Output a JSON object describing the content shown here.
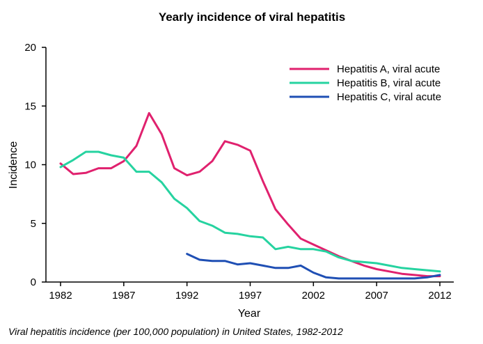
{
  "chart_data": {
    "type": "line",
    "title": "Yearly incidence of viral hepatitis",
    "xlabel": "Year",
    "ylabel": "Incidence",
    "xlim": [
      1982,
      2012
    ],
    "ylim": [
      0,
      20
    ],
    "x_ticks": [
      1982,
      1987,
      1992,
      1997,
      2002,
      2007,
      2012
    ],
    "y_ticks": [
      0,
      5,
      10,
      15,
      20
    ],
    "grid": false,
    "legend_position": "top-right",
    "series": [
      {
        "name": "Hepatitis A, viral acute",
        "color": "#e0216e",
        "x": [
          1982,
          1983,
          1984,
          1985,
          1986,
          1987,
          1988,
          1989,
          1990,
          1991,
          1992,
          1993,
          1994,
          1995,
          1996,
          1997,
          1998,
          1999,
          2000,
          2001,
          2002,
          2003,
          2004,
          2005,
          2006,
          2007,
          2008,
          2009,
          2010,
          2011,
          2012
        ],
        "values": [
          10.1,
          9.2,
          9.3,
          9.7,
          9.7,
          10.3,
          11.6,
          14.4,
          12.6,
          9.7,
          9.1,
          9.4,
          10.3,
          12.0,
          11.7,
          11.2,
          8.6,
          6.2,
          4.9,
          3.7,
          3.2,
          2.7,
          2.2,
          1.8,
          1.4,
          1.1,
          0.9,
          0.7,
          0.6,
          0.5,
          0.5
        ]
      },
      {
        "name": "Hepatitis B, viral acute",
        "color": "#26d3a0",
        "x": [
          1982,
          1983,
          1984,
          1985,
          1986,
          1987,
          1988,
          1989,
          1990,
          1991,
          1992,
          1993,
          1994,
          1995,
          1996,
          1997,
          1998,
          1999,
          2000,
          2001,
          2002,
          2003,
          2004,
          2005,
          2006,
          2007,
          2008,
          2009,
          2010,
          2011,
          2012
        ],
        "values": [
          9.8,
          10.4,
          11.1,
          11.1,
          10.8,
          10.6,
          9.4,
          9.4,
          8.5,
          7.1,
          6.3,
          5.2,
          4.8,
          4.2,
          4.1,
          3.9,
          3.8,
          2.8,
          3.0,
          2.8,
          2.8,
          2.6,
          2.1,
          1.8,
          1.7,
          1.6,
          1.4,
          1.2,
          1.1,
          1.0,
          0.9
        ]
      },
      {
        "name": "Hepatitis C, viral acute",
        "color": "#1f4fb4",
        "x": [
          1992,
          1993,
          1994,
          1995,
          1996,
          1997,
          1998,
          1999,
          2000,
          2001,
          2002,
          2003,
          2004,
          2005,
          2006,
          2007,
          2008,
          2009,
          2010,
          2011,
          2012
        ],
        "values": [
          2.4,
          1.9,
          1.8,
          1.8,
          1.5,
          1.6,
          1.4,
          1.2,
          1.2,
          1.4,
          0.8,
          0.4,
          0.3,
          0.3,
          0.3,
          0.3,
          0.3,
          0.3,
          0.3,
          0.4,
          0.6
        ]
      }
    ]
  },
  "caption": "Viral hepatitis incidence (per 100,000 population) in United States, 1982-2012"
}
